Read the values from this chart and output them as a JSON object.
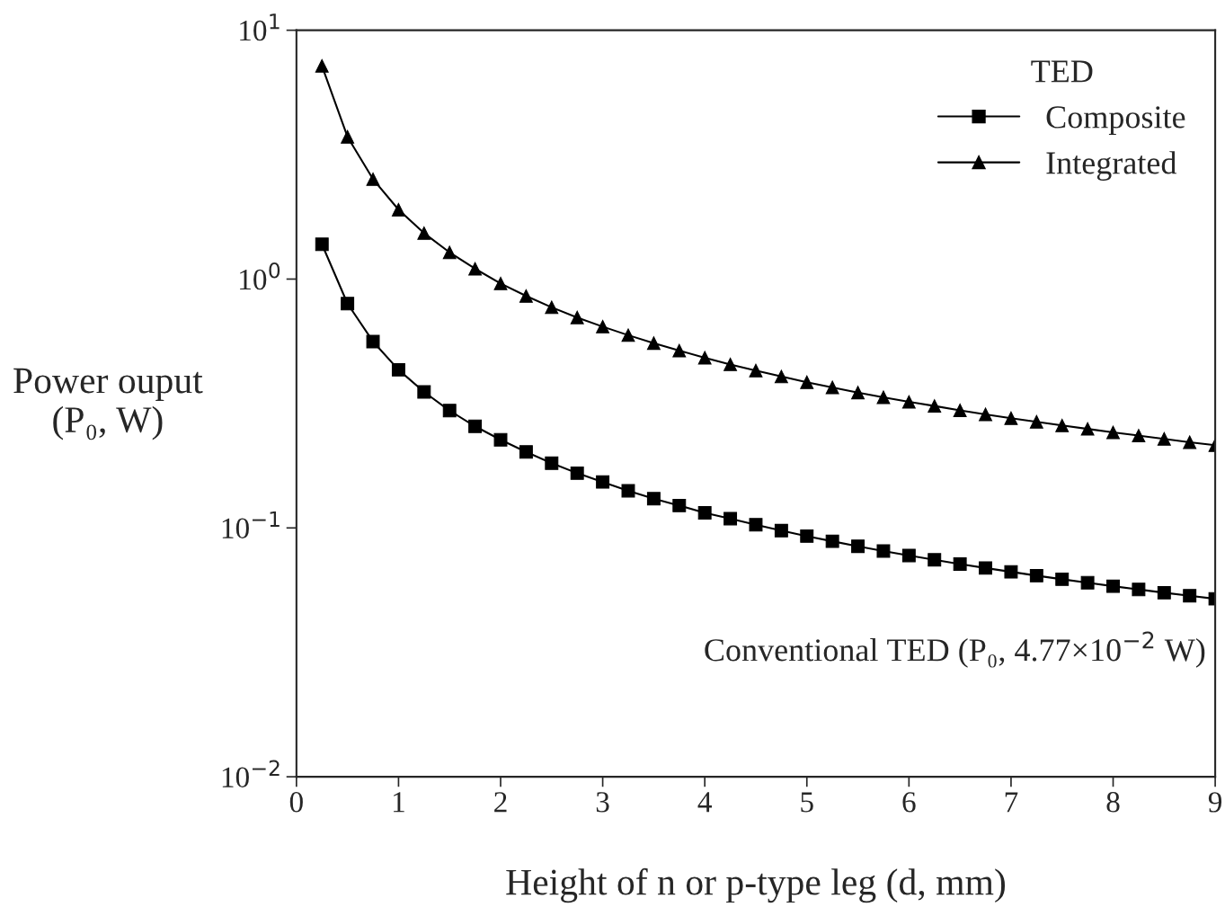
{
  "chart_data": {
    "type": "line",
    "xlabel": "Height of n or p-type leg (d, mm)",
    "ylabel": "Power ouput\n(P₀, W)",
    "legend_title": "TED",
    "legend": "top right",
    "log": "y",
    "grid": false,
    "line_style": "solid",
    "x": [
      0.25,
      0.5,
      0.75,
      1.0,
      1.25,
      1.5,
      1.75,
      2.0,
      2.25,
      2.5,
      2.75,
      3.0,
      3.25,
      3.5,
      3.75,
      4.0,
      4.25,
      4.5,
      4.75,
      5.0,
      5.25,
      5.5,
      5.75,
      6.0,
      6.25,
      6.5,
      6.75,
      7.0,
      7.25,
      7.5,
      7.75,
      8.0,
      8.25,
      8.5,
      8.75,
      9.0
    ],
    "series": [
      {
        "name": "Composite",
        "color": "#000000",
        "marker": "square",
        "values": [
          1.38,
          0.797,
          0.561,
          0.432,
          0.352,
          0.296,
          0.256,
          0.226,
          0.202,
          0.182,
          0.166,
          0.153,
          0.141,
          0.131,
          0.123,
          0.115,
          0.109,
          0.103,
          0.0975,
          0.0927,
          0.0884,
          0.0844,
          0.0808,
          0.0775,
          0.0744,
          0.0716,
          0.069,
          0.0666,
          0.0643,
          0.0622,
          0.0602,
          0.0583,
          0.0566,
          0.0549,
          0.0534,
          0.0519
        ]
      },
      {
        "name": "Integrated",
        "color": "#000000",
        "marker": "triangle",
        "values": [
          7.19,
          3.73,
          2.52,
          1.9,
          1.53,
          1.28,
          1.1,
          0.96,
          0.855,
          0.77,
          0.701,
          0.644,
          0.595,
          0.553,
          0.516,
          0.483,
          0.454,
          0.429,
          0.406,
          0.385,
          0.367,
          0.35,
          0.335,
          0.321,
          0.309,
          0.297,
          0.286,
          0.276,
          0.267,
          0.258,
          0.25,
          0.242,
          0.235,
          0.228,
          0.221,
          0.215
        ]
      }
    ],
    "xlim": [
      0,
      9
    ],
    "xticks": [
      0,
      1,
      2,
      3,
      4,
      5,
      6,
      7,
      8,
      9
    ],
    "ylim": [
      0.01,
      10
    ],
    "yticks": [
      {
        "value": 0.01,
        "label": "10$^{−2}$"
      },
      {
        "value": 0.1,
        "label": "10$^{−1}$"
      },
      {
        "value": 1,
        "label": "10$^{0}$"
      },
      {
        "value": 10,
        "label": "10$^{1}$"
      }
    ],
    "annotations": [
      "Conventional TED (P₀, 4.77×10$^{−2}$ W)"
    ]
  }
}
